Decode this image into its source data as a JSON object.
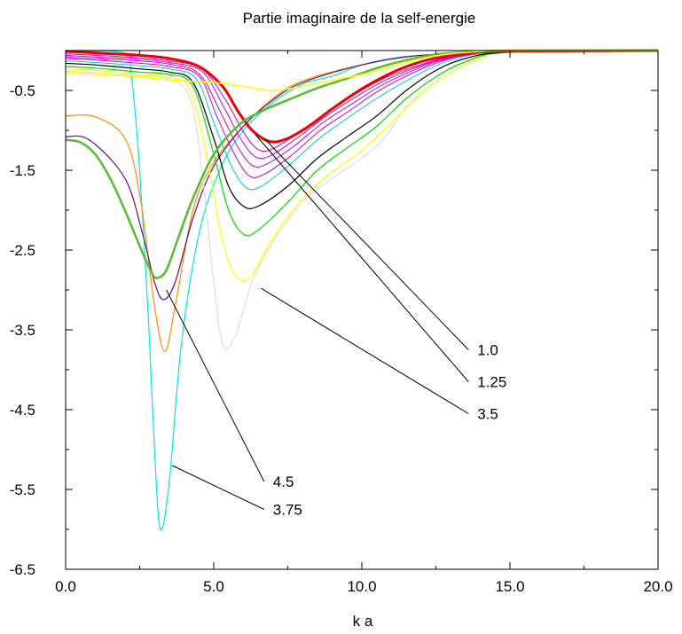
{
  "chart_data": {
    "type": "line",
    "title": "Partie imaginaire de la self-energie",
    "xlabel": "k a",
    "ylabel": "",
    "xlim": [
      0,
      20
    ],
    "ylim": [
      -6.5,
      0.15
    ],
    "xticks": [
      "0.0",
      "5.0",
      "10.0",
      "15.0",
      "20.0"
    ],
    "yticks": [
      "-0.5",
      "-1.5",
      "-2.5",
      "-3.5",
      "-4.5",
      "-5.5",
      "-6.5"
    ],
    "grid": false,
    "annotations": [
      "1.0",
      "1.25",
      "3.5",
      "4.5",
      "3.75"
    ],
    "series": [
      {
        "color": "#00e5e5",
        "width": 1.2,
        "points": [
          [
            0,
            -0.01
          ],
          [
            2.0,
            -0.03
          ],
          [
            2.2,
            -0.25
          ],
          [
            2.5,
            -1.5
          ],
          [
            2.8,
            -3.4
          ],
          [
            3.0,
            -5.0
          ],
          [
            3.2,
            -6.0
          ],
          [
            3.5,
            -5.4
          ],
          [
            3.9,
            -3.7
          ],
          [
            4.5,
            -2.3
          ],
          [
            5.2,
            -1.5
          ],
          [
            6.0,
            -1.0
          ],
          [
            7.0,
            -0.65
          ],
          [
            8.0,
            -0.42
          ],
          [
            9.0,
            -0.32
          ],
          [
            10.0,
            -0.18
          ],
          [
            11.0,
            -0.1
          ],
          [
            12.0,
            -0.06
          ],
          [
            15.0,
            -0.01
          ],
          [
            20.0,
            0.0
          ]
        ]
      },
      {
        "color": "#ff8c00",
        "width": 1.2,
        "points": [
          [
            0,
            -0.82
          ],
          [
            1.0,
            -0.83
          ],
          [
            2.0,
            -1.1
          ],
          [
            2.5,
            -1.8
          ],
          [
            3.0,
            -3.2
          ],
          [
            3.35,
            -3.77
          ],
          [
            3.7,
            -3.2
          ],
          [
            4.3,
            -2.0
          ],
          [
            5.0,
            -1.4
          ],
          [
            6.0,
            -0.95
          ],
          [
            7.0,
            -0.6
          ],
          [
            8.0,
            -0.38
          ],
          [
            10.0,
            -0.18
          ],
          [
            12.0,
            -0.06
          ],
          [
            15.0,
            -0.01
          ],
          [
            20.0,
            0.0
          ]
        ]
      },
      {
        "color": "#6a0d6a",
        "width": 1.2,
        "points": [
          [
            0,
            -1.08
          ],
          [
            0.8,
            -1.12
          ],
          [
            2.0,
            -1.6
          ],
          [
            2.6,
            -2.3
          ],
          [
            3.0,
            -2.9
          ],
          [
            3.3,
            -3.12
          ],
          [
            3.7,
            -2.9
          ],
          [
            4.3,
            -2.1
          ],
          [
            5.0,
            -1.45
          ],
          [
            6.0,
            -0.95
          ],
          [
            7.0,
            -0.62
          ],
          [
            8.0,
            -0.4
          ],
          [
            10.0,
            -0.18
          ],
          [
            12.0,
            -0.06
          ],
          [
            15.0,
            -0.01
          ],
          [
            20.0,
            0.0
          ]
        ]
      },
      {
        "color": "#dddddd",
        "width": 1.2,
        "points": [
          [
            0,
            -0.26
          ],
          [
            1.0,
            -0.28
          ],
          [
            2.5,
            -0.32
          ],
          [
            3.5,
            -0.36
          ],
          [
            4.2,
            -0.6
          ],
          [
            4.6,
            -1.5
          ],
          [
            5.0,
            -2.9
          ],
          [
            5.3,
            -3.68
          ],
          [
            5.7,
            -3.6
          ],
          [
            6.3,
            -2.9
          ],
          [
            7.0,
            -2.4
          ],
          [
            8.0,
            -1.9
          ],
          [
            9.0,
            -1.6
          ],
          [
            10.0,
            -1.35
          ],
          [
            10.8,
            -1.08
          ],
          [
            11.5,
            -0.7
          ],
          [
            12.5,
            -0.38
          ],
          [
            13.5,
            -0.15
          ],
          [
            15.0,
            -0.02
          ],
          [
            20.0,
            0.0
          ]
        ]
      },
      {
        "color": "#ffff00",
        "width": 1.2,
        "points": [
          [
            0,
            -0.23
          ],
          [
            1.0,
            -0.25
          ],
          [
            2.5,
            -0.3
          ],
          [
            3.5,
            -0.33
          ],
          [
            4.2,
            -0.5
          ],
          [
            4.8,
            -1.4
          ],
          [
            5.3,
            -2.4
          ],
          [
            5.8,
            -2.85
          ],
          [
            6.3,
            -2.8
          ],
          [
            7.0,
            -2.35
          ],
          [
            8.0,
            -1.85
          ],
          [
            9.0,
            -1.52
          ],
          [
            10.0,
            -1.25
          ],
          [
            11.0,
            -0.9
          ],
          [
            12.0,
            -0.55
          ],
          [
            13.0,
            -0.28
          ],
          [
            14.0,
            -0.1
          ],
          [
            15.0,
            -0.02
          ],
          [
            20.0,
            0.0
          ]
        ]
      },
      {
        "color": "#00dd00",
        "width": 1.2,
        "points": [
          [
            0,
            -0.2
          ],
          [
            1.0,
            -0.22
          ],
          [
            2.5,
            -0.27
          ],
          [
            3.5,
            -0.3
          ],
          [
            4.3,
            -0.45
          ],
          [
            5.0,
            -1.3
          ],
          [
            5.5,
            -2.0
          ],
          [
            6.0,
            -2.3
          ],
          [
            6.5,
            -2.25
          ],
          [
            7.5,
            -1.9
          ],
          [
            8.5,
            -1.5
          ],
          [
            9.5,
            -1.22
          ],
          [
            10.5,
            -0.95
          ],
          [
            11.5,
            -0.6
          ],
          [
            12.5,
            -0.33
          ],
          [
            13.5,
            -0.14
          ],
          [
            15.0,
            -0.02
          ],
          [
            20.0,
            0.0
          ]
        ]
      },
      {
        "color": "#000000",
        "width": 1.2,
        "points": [
          [
            0,
            -0.16
          ],
          [
            1.0,
            -0.18
          ],
          [
            2.5,
            -0.23
          ],
          [
            3.5,
            -0.27
          ],
          [
            4.3,
            -0.4
          ],
          [
            5.0,
            -1.1
          ],
          [
            5.5,
            -1.7
          ],
          [
            6.0,
            -1.95
          ],
          [
            6.5,
            -1.95
          ],
          [
            7.5,
            -1.7
          ],
          [
            8.5,
            -1.35
          ],
          [
            9.5,
            -1.08
          ],
          [
            10.5,
            -0.82
          ],
          [
            11.5,
            -0.5
          ],
          [
            12.5,
            -0.25
          ],
          [
            13.5,
            -0.1
          ],
          [
            15.0,
            -0.02
          ],
          [
            20.0,
            0.0
          ]
        ]
      },
      {
        "color": "#00cccc",
        "width": 1.0,
        "points": [
          [
            0,
            -0.13
          ],
          [
            1.0,
            -0.15
          ],
          [
            2.5,
            -0.19
          ],
          [
            3.5,
            -0.23
          ],
          [
            4.4,
            -0.35
          ],
          [
            5.0,
            -0.9
          ],
          [
            5.6,
            -1.45
          ],
          [
            6.1,
            -1.72
          ],
          [
            6.6,
            -1.7
          ],
          [
            7.5,
            -1.45
          ],
          [
            8.5,
            -1.12
          ],
          [
            9.5,
            -0.85
          ],
          [
            10.5,
            -0.6
          ],
          [
            11.5,
            -0.38
          ],
          [
            12.5,
            -0.19
          ],
          [
            13.5,
            -0.07
          ],
          [
            15.0,
            -0.01
          ],
          [
            20.0,
            0.0
          ]
        ]
      },
      {
        "color": "#cc00cc",
        "width": 1.0,
        "points": [
          [
            0,
            -0.1
          ],
          [
            1.0,
            -0.12
          ],
          [
            2.5,
            -0.16
          ],
          [
            3.5,
            -0.2
          ],
          [
            4.5,
            -0.32
          ],
          [
            5.1,
            -0.82
          ],
          [
            5.7,
            -1.3
          ],
          [
            6.2,
            -1.57
          ],
          [
            6.7,
            -1.55
          ],
          [
            7.6,
            -1.32
          ],
          [
            8.6,
            -1.0
          ],
          [
            9.6,
            -0.75
          ],
          [
            10.5,
            -0.52
          ],
          [
            11.5,
            -0.32
          ],
          [
            12.5,
            -0.16
          ],
          [
            13.5,
            -0.06
          ],
          [
            15.0,
            -0.01
          ],
          [
            20.0,
            0.0
          ]
        ]
      },
      {
        "color": "#cc00cc",
        "width": 1.0,
        "points": [
          [
            0,
            -0.08
          ],
          [
            1.0,
            -0.1
          ],
          [
            2.5,
            -0.13
          ],
          [
            3.5,
            -0.17
          ],
          [
            4.5,
            -0.29
          ],
          [
            5.2,
            -0.75
          ],
          [
            5.8,
            -1.2
          ],
          [
            6.3,
            -1.44
          ],
          [
            6.8,
            -1.42
          ],
          [
            7.7,
            -1.2
          ],
          [
            8.7,
            -0.9
          ],
          [
            9.7,
            -0.66
          ],
          [
            10.6,
            -0.45
          ],
          [
            11.6,
            -0.27
          ],
          [
            12.6,
            -0.13
          ],
          [
            13.6,
            -0.05
          ],
          [
            15.0,
            -0.01
          ],
          [
            20.0,
            0.0
          ]
        ]
      },
      {
        "color": "#cc00cc",
        "width": 1.0,
        "points": [
          [
            0,
            -0.06
          ],
          [
            1.0,
            -0.08
          ],
          [
            2.5,
            -0.11
          ],
          [
            3.5,
            -0.15
          ],
          [
            4.6,
            -0.26
          ],
          [
            5.3,
            -0.68
          ],
          [
            5.9,
            -1.1
          ],
          [
            6.4,
            -1.33
          ],
          [
            6.9,
            -1.32
          ],
          [
            7.8,
            -1.1
          ],
          [
            8.8,
            -0.82
          ],
          [
            9.8,
            -0.58
          ],
          [
            10.7,
            -0.39
          ],
          [
            11.7,
            -0.23
          ],
          [
            12.7,
            -0.11
          ],
          [
            13.7,
            -0.04
          ],
          [
            15.0,
            -0.01
          ],
          [
            20.0,
            0.0
          ]
        ]
      },
      {
        "color": "#cc00cc",
        "width": 1.0,
        "points": [
          [
            0,
            -0.04
          ],
          [
            1.0,
            -0.06
          ],
          [
            2.5,
            -0.09
          ],
          [
            3.5,
            -0.13
          ],
          [
            4.6,
            -0.23
          ],
          [
            5.4,
            -0.62
          ],
          [
            6.0,
            -1.02
          ],
          [
            6.5,
            -1.24
          ],
          [
            7.0,
            -1.23
          ],
          [
            7.9,
            -1.02
          ],
          [
            8.9,
            -0.75
          ],
          [
            9.9,
            -0.52
          ],
          [
            10.8,
            -0.34
          ],
          [
            11.8,
            -0.2
          ],
          [
            12.8,
            -0.09
          ],
          [
            13.8,
            -0.03
          ],
          [
            15.0,
            -0.01
          ],
          [
            20.0,
            0.0
          ]
        ]
      },
      {
        "color": "#ee0000",
        "width": 3.0,
        "points": [
          [
            0,
            -0.01
          ],
          [
            1.0,
            -0.03
          ],
          [
            2.5,
            -0.06
          ],
          [
            3.5,
            -0.1
          ],
          [
            4.5,
            -0.2
          ],
          [
            5.3,
            -0.45
          ],
          [
            5.8,
            -0.75
          ],
          [
            6.3,
            -1.0
          ],
          [
            6.9,
            -1.14
          ],
          [
            7.5,
            -1.1
          ],
          [
            8.2,
            -0.95
          ],
          [
            9.0,
            -0.73
          ],
          [
            10.0,
            -0.48
          ],
          [
            11.0,
            -0.28
          ],
          [
            12.0,
            -0.14
          ],
          [
            13.0,
            -0.06
          ],
          [
            14.0,
            -0.02
          ],
          [
            15.0,
            -0.01
          ],
          [
            20.0,
            0.0
          ]
        ]
      },
      {
        "color": "#55bb33",
        "width": 2.5,
        "points": [
          [
            0,
            -1.12
          ],
          [
            0.5,
            -1.15
          ],
          [
            1.0,
            -1.3
          ],
          [
            1.5,
            -1.6
          ],
          [
            2.0,
            -2.0
          ],
          [
            2.5,
            -2.45
          ],
          [
            2.9,
            -2.78
          ],
          [
            3.1,
            -2.85
          ],
          [
            3.4,
            -2.75
          ],
          [
            3.8,
            -2.35
          ],
          [
            4.3,
            -1.85
          ],
          [
            5.0,
            -1.3
          ],
          [
            5.8,
            -0.95
          ],
          [
            6.5,
            -0.78
          ],
          [
            7.5,
            -0.62
          ],
          [
            8.5,
            -0.47
          ],
          [
            9.5,
            -0.35
          ],
          [
            10.5,
            -0.22
          ],
          [
            11.5,
            -0.12
          ],
          [
            12.5,
            -0.05
          ],
          [
            13.5,
            -0.02
          ],
          [
            15.0,
            0.0
          ],
          [
            20.0,
            0.0
          ]
        ]
      },
      {
        "color": "#ffff00",
        "width": 1.5,
        "points": [
          [
            0,
            -0.28
          ],
          [
            1.0,
            -0.3
          ],
          [
            2.0,
            -0.32
          ],
          [
            3.0,
            -0.35
          ],
          [
            4.0,
            -0.38
          ],
          [
            5.0,
            -0.4
          ],
          [
            6.0,
            -0.45
          ],
          [
            7.0,
            -0.5
          ],
          [
            8.0,
            -0.45
          ],
          [
            9.0,
            -0.37
          ],
          [
            10.0,
            -0.3
          ],
          [
            11.0,
            -0.2
          ],
          [
            12.0,
            -0.1
          ],
          [
            13.0,
            -0.04
          ],
          [
            14.0,
            -0.01
          ],
          [
            15.0,
            0.0
          ],
          [
            20.0,
            0.0
          ]
        ]
      }
    ],
    "annotation_lines": [
      {
        "label": "1.0",
        "from": [
          6.7,
          -1.1
        ],
        "to": [
          13.6,
          -3.75
        ]
      },
      {
        "label": "1.25",
        "from": [
          6.4,
          -1.05
        ],
        "to": [
          13.6,
          -4.15
        ]
      },
      {
        "label": "3.5",
        "from": [
          6.6,
          -2.98
        ],
        "to": [
          13.6,
          -4.55
        ]
      },
      {
        "label": "4.5",
        "from": [
          3.4,
          -3.0
        ],
        "to": [
          6.7,
          -5.4
        ]
      },
      {
        "label": "3.75",
        "from": [
          3.6,
          -5.2
        ],
        "to": [
          6.7,
          -5.75
        ]
      }
    ]
  }
}
